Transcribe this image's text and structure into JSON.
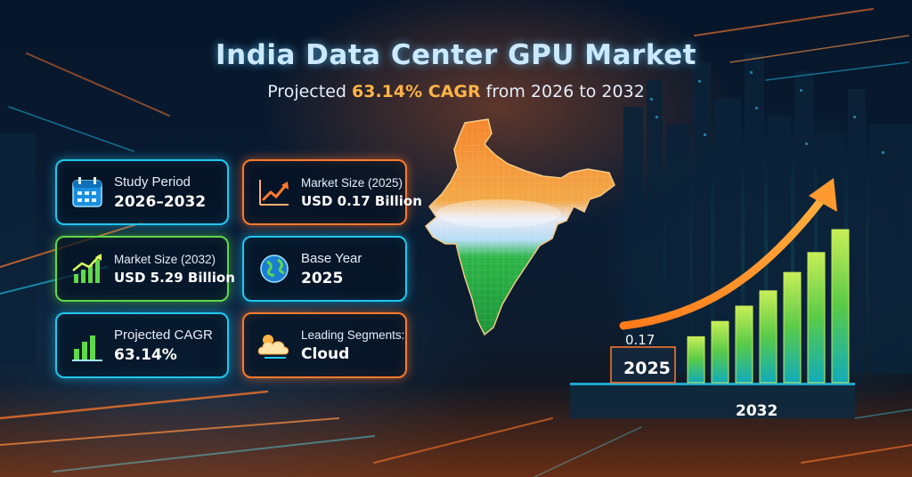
{
  "header": {
    "title": "India Data Center GPU Market",
    "subtitle_prefix": "Projected",
    "subtitle_cagr": "63.14% CAGR",
    "subtitle_suffix": "from 2026 to 2032"
  },
  "cards": {
    "study_period": {
      "label": "Study Period",
      "value": "2026–2032",
      "icon": "calendar-icon"
    },
    "market_size_2025": {
      "label": "Market Size (2025)",
      "value": "USD 0.17 Billion",
      "icon": "trend-up-icon"
    },
    "market_size_2032": {
      "label": "Market Size (2032)",
      "value": "USD 5.29 Billion",
      "icon": "bar-growth-icon"
    },
    "base_year": {
      "label": "Base Year",
      "value": "2025",
      "icon": "globe-icon"
    },
    "projected_cagr": {
      "label": "Projected CAGR",
      "value": "63.14%",
      "icon": "bar-chart-icon"
    },
    "leading_segments": {
      "label": "Leading Segments:",
      "value": "Cloud",
      "icon": "cloud-icon"
    }
  },
  "graphic": {
    "start_value_label": "0.17",
    "start_year_label": "2025",
    "end_year_label": "2032",
    "growth_bars_relative": [
      0.3,
      0.4,
      0.5,
      0.6,
      0.72,
      0.85,
      1.0
    ]
  },
  "colors": {
    "cyan_accent": "#22c7f0",
    "orange_accent": "#ff7a2e",
    "green_accent": "#5fd94a",
    "saffron": "#ff8a2a",
    "india_green": "#2fbf4a"
  }
}
